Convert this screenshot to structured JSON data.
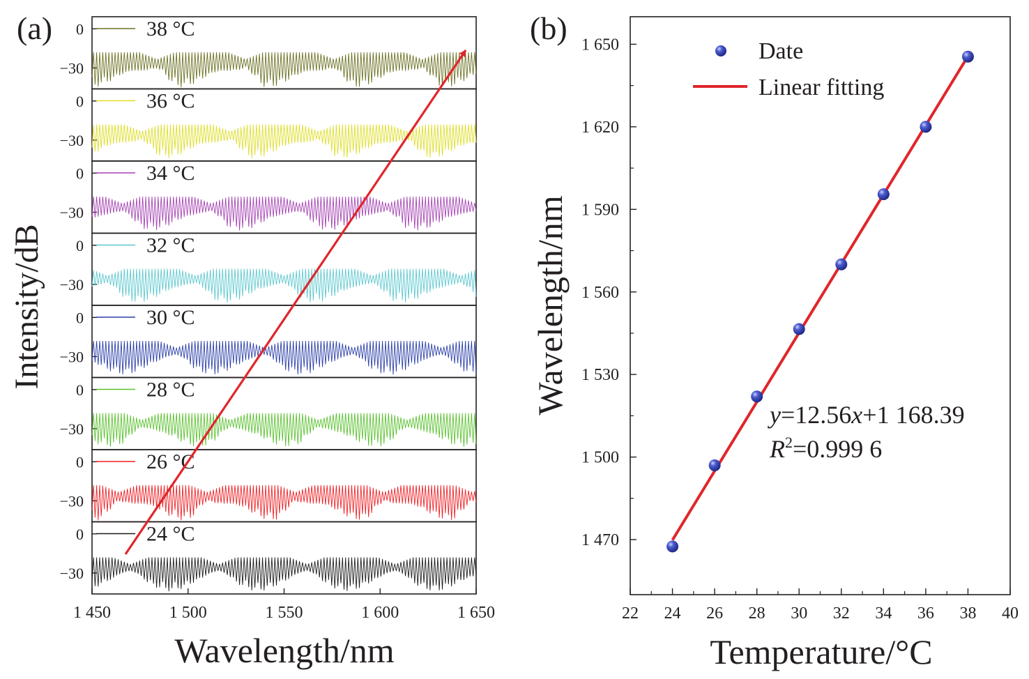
{
  "panel_a": {
    "label": "(a)",
    "ylabel": "Intensity/dB",
    "xlabel": "Wavelength/nm",
    "xticks": [
      "1 450",
      "1 500",
      "1 550",
      "1 600",
      "1 650"
    ],
    "yticks": [
      "0",
      "−30"
    ],
    "colors": {
      "38": "#6b7021",
      "36": "#dede26",
      "34": "#a441b2",
      "32": "#5cc8cf",
      "30": "#2b3fa8",
      "28": "#58c12c",
      "26": "#ee1f24",
      "24": "#1a1a1a",
      "arrow": "#e0262b"
    }
  },
  "panel_b": {
    "label": "(b)",
    "ylabel": "Wavelength/nm",
    "xlabel": "Temperature/°C",
    "xticks": [
      "22",
      "24",
      "26",
      "28",
      "30",
      "32",
      "34",
      "36",
      "38",
      "40"
    ],
    "yticks": [
      "1 470",
      "1 500",
      "1 530",
      "1 560",
      "1 590",
      "1 620",
      "1 650"
    ],
    "legend_data": "Date",
    "legend_fit": "Linear fitting",
    "eq_y": "y",
    "eq_rest": "=12.56",
    "eq_x": "x",
    "eq_tail": "+1 168.39",
    "r_label": "R",
    "r_sup": "2",
    "r_value": "=0.999 6",
    "point_color": "#2e3ba6",
    "line_color": "#e0262b"
  },
  "chart_data": [
    {
      "type": "line",
      "title": "",
      "xlabel": "Wavelength/nm",
      "ylabel": "Intensity/dB",
      "xlim": [
        1450,
        1650
      ],
      "ylim": [
        -45,
        5
      ],
      "grid": false,
      "legend": "inside each stacked panel, top-left",
      "series": [
        {
          "name": "38 °C",
          "color": "#6b7021",
          "baseline_db": -26,
          "fringe_dip_db": -45,
          "envelope_dips_nm": [
            1484,
            1530,
            1576,
            1622
          ]
        },
        {
          "name": "36 °C",
          "color": "#dede26",
          "baseline_db": -26,
          "fringe_dip_db": -44,
          "envelope_dips_nm": [
            1476,
            1522,
            1568,
            1614
          ]
        },
        {
          "name": "34 °C",
          "color": "#a441b2",
          "baseline_db": -26,
          "fringe_dip_db": -44,
          "envelope_dips_nm": [
            1466,
            1512,
            1558,
            1604,
            1650
          ]
        },
        {
          "name": "32 °C",
          "color": "#5cc8cf",
          "baseline_db": -26,
          "fringe_dip_db": -44,
          "envelope_dips_nm": [
            1458,
            1504,
            1550,
            1596,
            1642
          ]
        },
        {
          "name": "30 °C",
          "color": "#2b3fa8",
          "baseline_db": -26,
          "fringe_dip_db": -44,
          "envelope_dips_nm": [
            1494,
            1540,
            1586,
            1632
          ]
        },
        {
          "name": "28 °C",
          "color": "#58c12c",
          "baseline_db": -26,
          "fringe_dip_db": -44,
          "envelope_dips_nm": [
            1476,
            1522,
            1568,
            1614
          ]
        },
        {
          "name": "26 °C",
          "color": "#ee1f24",
          "baseline_db": -26,
          "fringe_dip_db": -45,
          "envelope_dips_nm": [
            1464,
            1510,
            1556,
            1602,
            1648
          ]
        },
        {
          "name": "24 °C",
          "color": "#1a1a1a",
          "baseline_db": -26,
          "fringe_dip_db": -44,
          "envelope_dips_nm": [
            1470,
            1516,
            1562,
            1608
          ]
        }
      ],
      "arrow": {
        "from": [
          1466,
          -32
        ],
        "to": [
          1650,
          -22
        ],
        "color": "#e0262b"
      }
    },
    {
      "type": "scatter",
      "title": "",
      "xlabel": "Temperature/°C",
      "ylabel": "Wavelength/nm",
      "xlim": [
        22,
        40
      ],
      "ylim": [
        1450,
        1660
      ],
      "grid": false,
      "legend": "top-left",
      "series": [
        {
          "name": "Date",
          "x": [
            24,
            26,
            28,
            30,
            32,
            34,
            36,
            38
          ],
          "y": [
            1467.5,
            1497,
            1522,
            1546.5,
            1570,
            1595.5,
            1620,
            1645.5
          ]
        }
      ],
      "fit": {
        "name": "Linear fitting",
        "slope": 12.56,
        "intercept": 1168.39,
        "r2": 0.9996,
        "x_range": [
          24,
          38
        ]
      }
    }
  ]
}
